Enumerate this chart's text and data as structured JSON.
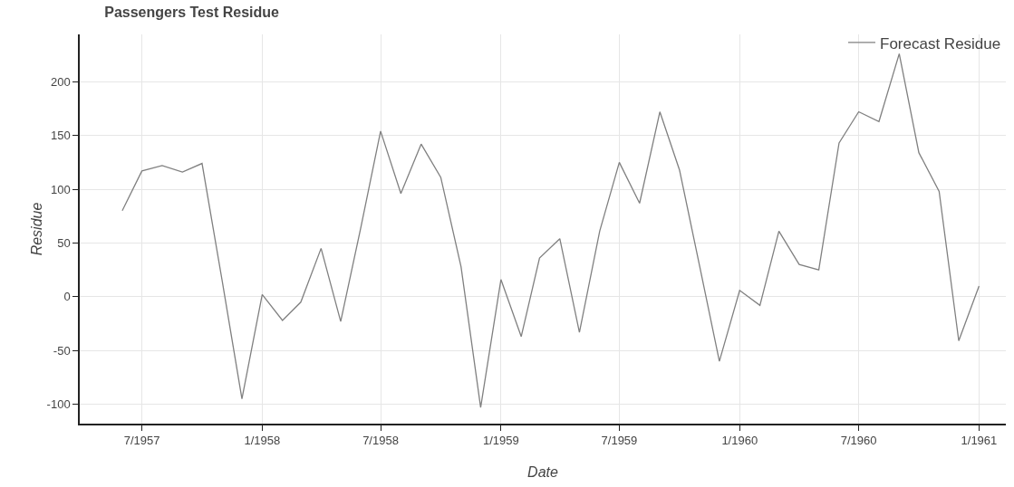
{
  "chart_data": {
    "type": "line",
    "title": "Passengers Test Residue",
    "xlabel": "Date",
    "ylabel": "Residue",
    "x": [
      "1957-06",
      "1957-07",
      "1957-08",
      "1957-09",
      "1957-10",
      "1957-11",
      "1957-12",
      "1958-01",
      "1958-02",
      "1958-03",
      "1958-04",
      "1958-05",
      "1958-06",
      "1958-07",
      "1958-08",
      "1958-09",
      "1958-10",
      "1958-11",
      "1958-12",
      "1959-01",
      "1959-02",
      "1959-03",
      "1959-04",
      "1959-05",
      "1959-06",
      "1959-07",
      "1959-08",
      "1959-09",
      "1959-10",
      "1959-11",
      "1959-12",
      "1960-01",
      "1960-02",
      "1960-03",
      "1960-04",
      "1960-05",
      "1960-06",
      "1960-07",
      "1960-08",
      "1960-09",
      "1960-10",
      "1960-11",
      "1960-12",
      "1961-01"
    ],
    "series": [
      {
        "name": "Forecast Residue",
        "color": "#808080",
        "values": [
          80,
          117,
          122,
          116,
          124,
          14,
          -95,
          2,
          -22,
          -5,
          45,
          -23,
          65,
          154,
          96,
          142,
          111,
          28,
          -103,
          16,
          -37,
          36,
          54,
          -33,
          61,
          125,
          87,
          172,
          118,
          28,
          -60,
          6,
          -8,
          61,
          30,
          25,
          143,
          172,
          163,
          226,
          134,
          98,
          -41,
          10
        ]
      }
    ],
    "xlim": [
      "1957-03-28",
      "1961-02-11"
    ],
    "xticks": [
      {
        "value": "1957-07",
        "label": "7/1957"
      },
      {
        "value": "1958-01",
        "label": "1/1958"
      },
      {
        "value": "1958-07",
        "label": "7/1958"
      },
      {
        "value": "1959-01",
        "label": "1/1959"
      },
      {
        "value": "1959-07",
        "label": "7/1959"
      },
      {
        "value": "1960-01",
        "label": "1/1960"
      },
      {
        "value": "1960-07",
        "label": "7/1960"
      },
      {
        "value": "1961-01",
        "label": "1/1961"
      }
    ],
    "ylim": [
      -118,
      244
    ],
    "yticks": [
      -100,
      -50,
      0,
      50,
      100,
      150,
      200
    ],
    "grid": true,
    "legend": "top right",
    "line_style": "solid"
  }
}
